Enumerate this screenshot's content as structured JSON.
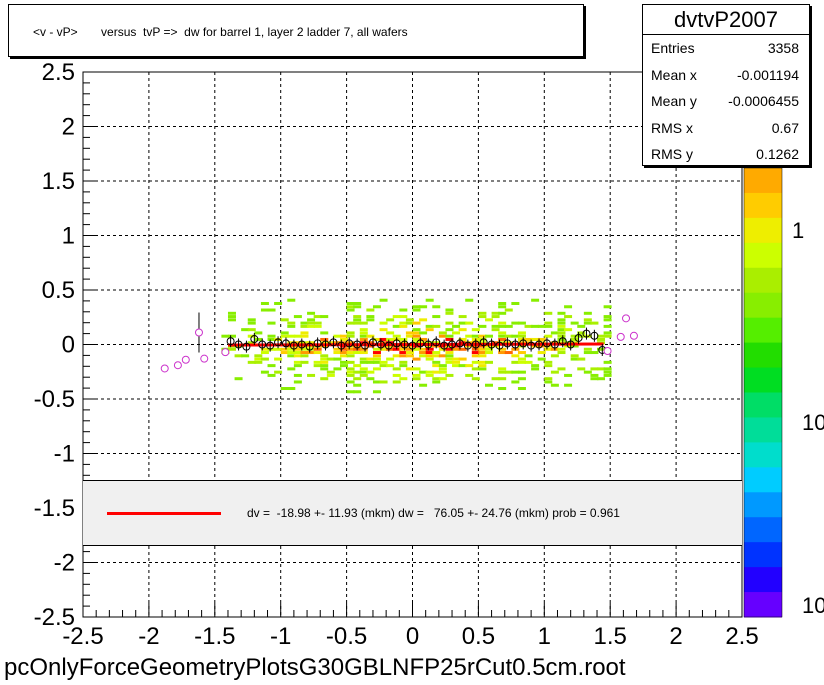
{
  "title": "<v - vP>       versus  tvP =>  dw for barrel 1, layer 2 ladder 7, all wafers",
  "stats": {
    "name": "dvtvP2007",
    "rows": [
      {
        "label": "Entries",
        "value": "3358"
      },
      {
        "label": "Mean x",
        "value": "-0.001194"
      },
      {
        "label": "Mean y",
        "value": "-0.0006455"
      },
      {
        "label": "RMS x",
        "value": "0.67"
      },
      {
        "label": "RMS y",
        "value": "0.1262"
      }
    ]
  },
  "fit_legend": "dv =  -18.98 +- 11.93 (mkm) dw =   76.05 +- 24.76 (mkm) prob = 0.961",
  "file_name": "pcOnlyForceGeometryPlotsG30GBLNFP25rCut0.5cm.root",
  "colors": {
    "fit": "#ff0000",
    "profile_open": "#cc33cc",
    "profile_black": "#000000",
    "grid": "#000000"
  },
  "chart_data": {
    "type": "heatmap",
    "title": "<v - vP>       versus  tvP =>  dw for barrel 1, layer 2 ladder 7, all wafers",
    "xlabel": "",
    "ylabel": "",
    "xlim": [
      -2.5,
      2.5
    ],
    "ylim": [
      -2.5,
      2.5
    ],
    "x_ticks": [
      "-2.5",
      "-2",
      "-1.5",
      "-1",
      "-0.5",
      "0",
      "0.5",
      "1",
      "1.5",
      "2",
      "2.5"
    ],
    "y_ticks": [
      "2.5",
      "2",
      "1.5",
      "1",
      "0.5",
      "0",
      "-0.5",
      "-1",
      "-1.5",
      "-2",
      "-2.5"
    ],
    "grid": true,
    "colorbar_labels": [
      "1",
      "10",
      "10"
    ],
    "heat_region": {
      "x": [
        -1.45,
        1.5
      ],
      "y": [
        -0.45,
        0.45
      ],
      "core_y": [
        -0.12,
        0.12
      ]
    },
    "profile_open": [
      {
        "x": -1.88,
        "y": -0.22
      },
      {
        "x": -1.78,
        "y": -0.19
      },
      {
        "x": -1.72,
        "y": -0.14
      },
      {
        "x": -1.62,
        "y": 0.11
      },
      {
        "x": -1.58,
        "y": -0.13
      },
      {
        "x": -1.42,
        "y": -0.07
      },
      {
        "x": 1.48,
        "y": -0.06
      },
      {
        "x": 1.58,
        "y": 0.07
      },
      {
        "x": 1.62,
        "y": 0.24
      },
      {
        "x": 1.68,
        "y": 0.08
      }
    ],
    "profile_black": [
      {
        "x": -1.38,
        "y": 0.03
      },
      {
        "x": -1.32,
        "y": 0.0
      },
      {
        "x": -1.26,
        "y": -0.02
      },
      {
        "x": -1.2,
        "y": 0.05
      },
      {
        "x": -1.14,
        "y": 0.0
      },
      {
        "x": -1.08,
        "y": -0.01
      },
      {
        "x": -1.02,
        "y": 0.02
      },
      {
        "x": -0.96,
        "y": 0.01
      },
      {
        "x": -0.9,
        "y": -0.01
      },
      {
        "x": -0.84,
        "y": 0.0
      },
      {
        "x": -0.78,
        "y": -0.02
      },
      {
        "x": -0.72,
        "y": 0.01
      },
      {
        "x": -0.66,
        "y": 0.0
      },
      {
        "x": -0.6,
        "y": 0.02
      },
      {
        "x": -0.54,
        "y": -0.01
      },
      {
        "x": -0.48,
        "y": 0.01
      },
      {
        "x": -0.42,
        "y": 0.0
      },
      {
        "x": -0.36,
        "y": -0.01
      },
      {
        "x": -0.3,
        "y": 0.02
      },
      {
        "x": -0.24,
        "y": 0.0
      },
      {
        "x": -0.18,
        "y": -0.01
      },
      {
        "x": -0.12,
        "y": 0.01
      },
      {
        "x": -0.06,
        "y": 0.0
      },
      {
        "x": 0.0,
        "y": -0.01
      },
      {
        "x": 0.06,
        "y": 0.01
      },
      {
        "x": 0.12,
        "y": 0.0
      },
      {
        "x": 0.18,
        "y": 0.02
      },
      {
        "x": 0.24,
        "y": -0.01
      },
      {
        "x": 0.3,
        "y": 0.0
      },
      {
        "x": 0.36,
        "y": 0.01
      },
      {
        "x": 0.42,
        "y": -0.01
      },
      {
        "x": 0.48,
        "y": 0.0
      },
      {
        "x": 0.54,
        "y": 0.02
      },
      {
        "x": 0.6,
        "y": 0.0
      },
      {
        "x": 0.66,
        "y": -0.01
      },
      {
        "x": 0.72,
        "y": 0.01
      },
      {
        "x": 0.78,
        "y": 0.0
      },
      {
        "x": 0.84,
        "y": 0.01
      },
      {
        "x": 0.9,
        "y": -0.01
      },
      {
        "x": 0.96,
        "y": 0.0
      },
      {
        "x": 1.02,
        "y": 0.01
      },
      {
        "x": 1.08,
        "y": 0.0
      },
      {
        "x": 1.14,
        "y": 0.03
      },
      {
        "x": 1.2,
        "y": 0.0
      },
      {
        "x": 1.26,
        "y": 0.06
      },
      {
        "x": 1.32,
        "y": 0.1
      },
      {
        "x": 1.38,
        "y": 0.08
      },
      {
        "x": 1.44,
        "y": -0.05
      }
    ],
    "fit_line": {
      "x": [
        -1.4,
        1.45
      ],
      "y": [
        -0.005,
        0.005
      ]
    }
  }
}
